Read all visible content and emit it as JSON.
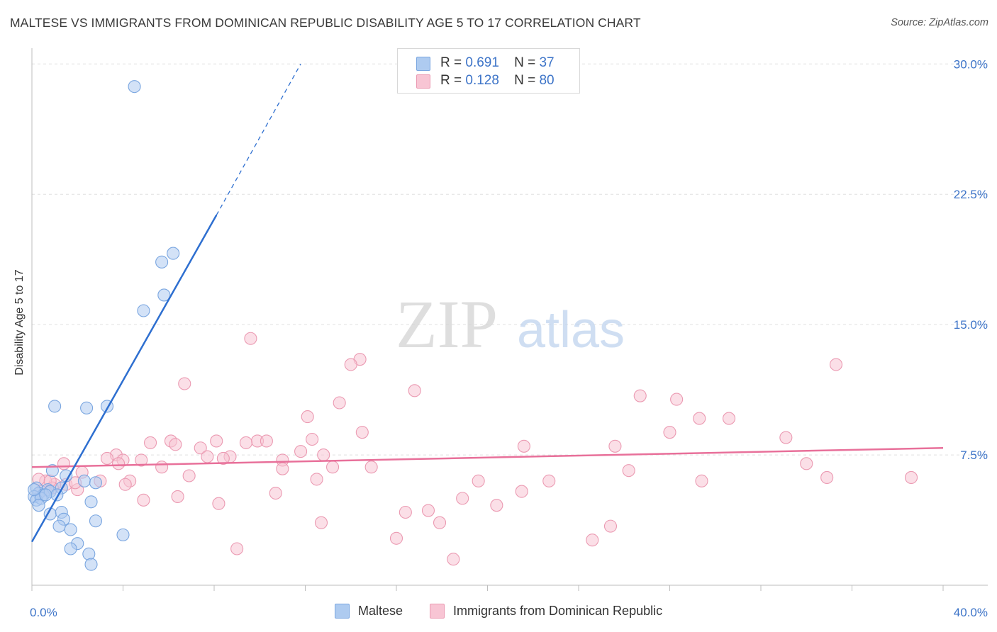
{
  "title": "MALTESE VS IMMIGRANTS FROM DOMINICAN REPUBLIC DISABILITY AGE 5 TO 17 CORRELATION CHART",
  "source": "Source: ZipAtlas.com",
  "watermark": {
    "zip": "ZIP",
    "atlas": "atlas"
  },
  "legend": {
    "rows": [
      {
        "r_label": "R =",
        "r_value": "0.691",
        "n_label": "N =",
        "n_value": "37"
      },
      {
        "r_label": "R =",
        "r_value": "0.128",
        "n_label": "N =",
        "n_value": "80"
      }
    ]
  },
  "bottom_legend": {
    "series1": "Maltese",
    "series2": "Immigrants from Dominican Republic"
  },
  "colors": {
    "blue_fill": "#aecbf0",
    "blue_stroke": "#7aa6e0",
    "blue_line": "#2e6fd0",
    "pink_fill": "#f8c5d4",
    "pink_stroke": "#eb9ab2",
    "pink_line": "#e8709a",
    "tick_text": "#3d74c8"
  },
  "chart_data": {
    "type": "scatter",
    "title": "MALTESE VS IMMIGRANTS FROM DOMINICAN REPUBLIC DISABILITY AGE 5 TO 17 CORRELATION CHART",
    "xlabel": "",
    "ylabel": "Disability Age 5 to 17",
    "xlim": [
      0,
      40
    ],
    "ylim": [
      0,
      30.5
    ],
    "x_tick_labels": [
      "0.0%",
      "40.0%"
    ],
    "y_ticks": [
      7.5,
      15.0,
      22.5,
      30.0
    ],
    "y_tick_labels": [
      "7.5%",
      "15.0%",
      "22.5%",
      "30.0%"
    ],
    "series": [
      {
        "name": "Maltese",
        "R": 0.691,
        "N": 37,
        "trend": {
          "x": [
            0.0,
            8.1
          ],
          "y": [
            2.5,
            21.3
          ],
          "dashed_to": [
            11.8,
            30.0
          ]
        },
        "points": [
          [
            4.5,
            28.7
          ],
          [
            6.2,
            19.1
          ],
          [
            5.7,
            18.6
          ],
          [
            5.8,
            16.7
          ],
          [
            4.9,
            15.8
          ],
          [
            1.0,
            10.3
          ],
          [
            2.4,
            10.2
          ],
          [
            3.3,
            10.3
          ],
          [
            0.9,
            6.6
          ],
          [
            1.5,
            6.3
          ],
          [
            2.3,
            6.0
          ],
          [
            2.8,
            5.9
          ],
          [
            0.2,
            5.6
          ],
          [
            0.7,
            5.5
          ],
          [
            1.3,
            5.6
          ],
          [
            0.3,
            5.3
          ],
          [
            0.5,
            5.2
          ],
          [
            0.8,
            5.4
          ],
          [
            1.1,
            5.2
          ],
          [
            0.1,
            5.1
          ],
          [
            0.2,
            4.9
          ],
          [
            0.4,
            5.0
          ],
          [
            0.6,
            5.2
          ],
          [
            0.3,
            4.6
          ],
          [
            2.6,
            4.8
          ],
          [
            0.8,
            4.1
          ],
          [
            1.3,
            4.2
          ],
          [
            1.4,
            3.8
          ],
          [
            2.8,
            3.7
          ],
          [
            1.2,
            3.4
          ],
          [
            1.7,
            3.2
          ],
          [
            4.0,
            2.9
          ],
          [
            2.0,
            2.4
          ],
          [
            1.7,
            2.1
          ],
          [
            2.5,
            1.8
          ],
          [
            2.6,
            1.2
          ],
          [
            0.1,
            5.5
          ]
        ]
      },
      {
        "name": "Immigrants from Dominican Republic",
        "R": 0.128,
        "N": 80,
        "trend": {
          "x": [
            0.0,
            40.0
          ],
          "y": [
            6.8,
            7.9
          ]
        },
        "points": [
          [
            9.6,
            14.2
          ],
          [
            14.4,
            13.0
          ],
          [
            14.0,
            12.7
          ],
          [
            35.3,
            12.7
          ],
          [
            6.7,
            11.6
          ],
          [
            16.8,
            11.2
          ],
          [
            26.7,
            10.9
          ],
          [
            28.3,
            10.7
          ],
          [
            13.5,
            10.5
          ],
          [
            12.1,
            9.7
          ],
          [
            29.3,
            9.6
          ],
          [
            30.6,
            9.6
          ],
          [
            14.5,
            8.8
          ],
          [
            28.0,
            8.8
          ],
          [
            33.1,
            8.5
          ],
          [
            12.3,
            8.4
          ],
          [
            9.9,
            8.3
          ],
          [
            10.3,
            8.3
          ],
          [
            5.2,
            8.2
          ],
          [
            6.1,
            8.3
          ],
          [
            8.1,
            8.3
          ],
          [
            9.4,
            8.2
          ],
          [
            6.3,
            8.1
          ],
          [
            21.6,
            8.0
          ],
          [
            25.6,
            8.0
          ],
          [
            7.4,
            7.9
          ],
          [
            11.8,
            7.7
          ],
          [
            3.7,
            7.5
          ],
          [
            12.8,
            7.5
          ],
          [
            7.7,
            7.4
          ],
          [
            8.7,
            7.4
          ],
          [
            8.4,
            7.3
          ],
          [
            3.3,
            7.3
          ],
          [
            4.0,
            7.2
          ],
          [
            11.0,
            7.2
          ],
          [
            4.8,
            7.2
          ],
          [
            1.4,
            7.0
          ],
          [
            3.8,
            7.0
          ],
          [
            5.7,
            6.8
          ],
          [
            13.2,
            6.8
          ],
          [
            14.9,
            6.8
          ],
          [
            11.0,
            6.7
          ],
          [
            26.2,
            6.6
          ],
          [
            34.0,
            7.0
          ],
          [
            2.2,
            6.5
          ],
          [
            6.9,
            6.3
          ],
          [
            12.5,
            6.1
          ],
          [
            19.6,
            6.0
          ],
          [
            22.7,
            6.0
          ],
          [
            29.4,
            6.0
          ],
          [
            34.9,
            6.2
          ],
          [
            38.6,
            6.2
          ],
          [
            4.3,
            6.0
          ],
          [
            3.0,
            6.0
          ],
          [
            1.5,
            5.8
          ],
          [
            4.1,
            5.8
          ],
          [
            1.0,
            5.8
          ],
          [
            0.6,
            6.0
          ],
          [
            0.3,
            6.1
          ],
          [
            2.0,
            5.5
          ],
          [
            0.9,
            5.6
          ],
          [
            0.4,
            5.4
          ],
          [
            0.8,
            6.0
          ],
          [
            10.7,
            5.3
          ],
          [
            21.5,
            5.4
          ],
          [
            6.4,
            5.1
          ],
          [
            18.9,
            5.0
          ],
          [
            4.9,
            4.9
          ],
          [
            8.2,
            4.7
          ],
          [
            20.4,
            4.6
          ],
          [
            16.4,
            4.2
          ],
          [
            17.4,
            4.3
          ],
          [
            17.9,
            3.6
          ],
          [
            12.7,
            3.6
          ],
          [
            25.4,
            3.4
          ],
          [
            16.0,
            2.7
          ],
          [
            24.6,
            2.6
          ],
          [
            9.0,
            2.1
          ],
          [
            18.5,
            1.5
          ],
          [
            1.9,
            5.9
          ]
        ]
      }
    ]
  }
}
